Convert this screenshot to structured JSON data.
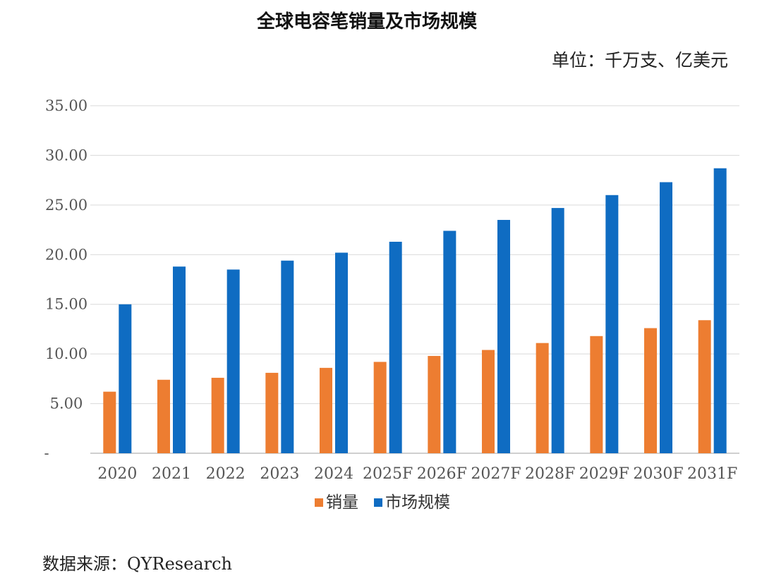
{
  "title": "全球电容笔销量及市场规模",
  "unit_label": "单位：千万支、亿美元",
  "source": "数据来源：QYResearch",
  "colors": {
    "sales": "#ED7D31",
    "market": "#0F6CC2",
    "grid": "#D9D9D9",
    "axis": "#BFBFBF"
  },
  "chart_data": {
    "type": "bar",
    "title": "全球电容笔销量及市场规模",
    "xlabel": "",
    "ylabel": "",
    "ylim": [
      0,
      35
    ],
    "yticks": [
      {
        "value": 0,
        "label": "-"
      },
      {
        "value": 5,
        "label": "5.00"
      },
      {
        "value": 10,
        "label": "10.00"
      },
      {
        "value": 15,
        "label": "15.00"
      },
      {
        "value": 20,
        "label": "20.00"
      },
      {
        "value": 25,
        "label": "25.00"
      },
      {
        "value": 30,
        "label": "30.00"
      },
      {
        "value": 35,
        "label": "35.00"
      }
    ],
    "categories": [
      "2020",
      "2021",
      "2022",
      "2023",
      "2024",
      "2025F",
      "2026F",
      "2027F",
      "2028F",
      "2029F",
      "2030F",
      "2031F"
    ],
    "series": [
      {
        "name": "销量",
        "key": "sales",
        "values": [
          6.2,
          7.4,
          7.6,
          8.1,
          8.6,
          9.2,
          9.8,
          10.4,
          11.1,
          11.8,
          12.6,
          13.4
        ]
      },
      {
        "name": "市场规模",
        "key": "market",
        "values": [
          15.0,
          18.8,
          18.5,
          19.4,
          20.2,
          21.3,
          22.4,
          23.5,
          24.7,
          26.0,
          27.3,
          28.7
        ]
      }
    ],
    "grid": true,
    "legend": "bottom"
  }
}
